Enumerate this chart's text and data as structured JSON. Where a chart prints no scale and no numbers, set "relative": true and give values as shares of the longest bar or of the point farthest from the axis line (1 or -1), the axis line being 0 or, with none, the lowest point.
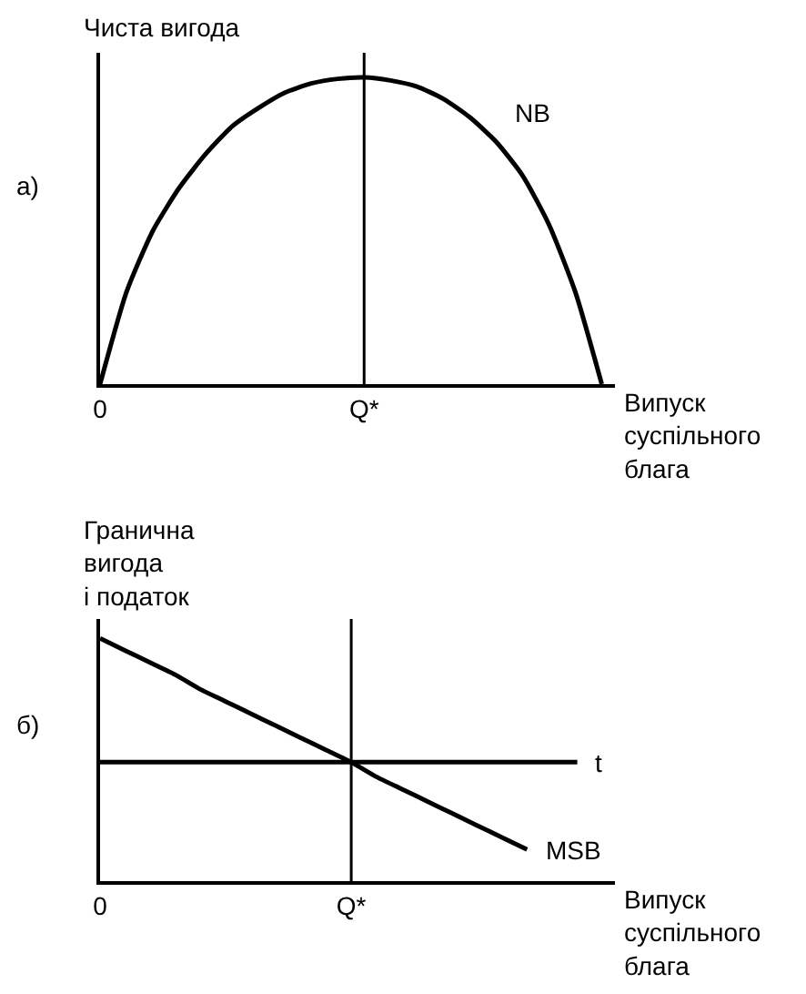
{
  "chart_data": [
    {
      "type": "line",
      "relative": true,
      "ylabel": "Чиста вигода",
      "xlabel": "Випуск\nсуспільного\nблага",
      "annotations": [
        "а)"
      ],
      "categories": [
        "0",
        null,
        null,
        null,
        null,
        null,
        null,
        null,
        null,
        null,
        "Q*",
        null,
        null,
        null,
        null,
        null,
        null,
        null,
        null,
        null
      ],
      "series": [
        {
          "name": "NB",
          "color": "#000000",
          "values": [
            0,
            0.3,
            0.5,
            0.64,
            0.75,
            0.84,
            0.9,
            0.95,
            0.98,
            0.995,
            1,
            0.99,
            0.97,
            0.93,
            0.87,
            0.79,
            0.68,
            0.52,
            0.3,
            0
          ]
        }
      ],
      "ref_lines": [
        {
          "axis": "x",
          "value": "Q*"
        }
      ]
    },
    {
      "type": "line",
      "relative": true,
      "ylabel": "Гранична\nвигода\nі податок",
      "xlabel": "Випуск\nсуспільного\nблага",
      "annotations": [
        "б)"
      ],
      "categories": [
        "0",
        null,
        null,
        null,
        null,
        null,
        null,
        null,
        null,
        null,
        "Q*",
        null,
        null,
        null,
        null,
        null,
        null,
        null,
        null,
        null,
        null
      ],
      "series": [
        {
          "name": "t",
          "color": "#000000",
          "values": [
            0.49,
            0.49,
            0.49,
            0.49,
            0.49,
            0.49,
            0.49,
            0.49,
            0.49,
            0.49,
            0.49,
            0.49,
            0.49,
            0.49,
            0.49,
            0.49,
            0.49,
            0.49,
            0.49,
            0.49,
            null
          ]
        },
        {
          "name": "MSB",
          "color": "#000000",
          "values": [
            1,
            0.95,
            0.9,
            0.85,
            0.79,
            0.74,
            0.69,
            0.64,
            0.59,
            0.54,
            0.49,
            0.43,
            0.38,
            0.33,
            0.28,
            0.23,
            0.18,
            0.13,
            null,
            null,
            null
          ]
        }
      ],
      "ref_lines": [
        {
          "axis": "x",
          "value": "Q*"
        }
      ]
    }
  ]
}
